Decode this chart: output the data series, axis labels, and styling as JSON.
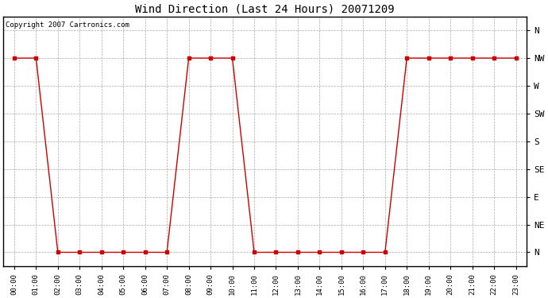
{
  "title": "Wind Direction (Last 24 Hours) 20071209",
  "copyright_text": "Copyright 2007 Cartronics.com",
  "line_color": "#cc0000",
  "marker_color": "#cc0000",
  "background_color": "#ffffff",
  "grid_color": "#aaaaaa",
  "x_labels": [
    "00:00",
    "01:00",
    "02:00",
    "03:00",
    "04:00",
    "05:00",
    "06:00",
    "07:00",
    "08:00",
    "09:00",
    "10:00",
    "11:00",
    "12:00",
    "13:00",
    "14:00",
    "15:00",
    "16:00",
    "17:00",
    "18:00",
    "19:00",
    "20:00",
    "21:00",
    "22:00",
    "23:00"
  ],
  "y_labels_top_to_bottom": [
    "N",
    "NW",
    "W",
    "SW",
    "S",
    "SE",
    "E",
    "NE",
    "N"
  ],
  "y_ticks": [
    8,
    7,
    6,
    5,
    4,
    3,
    2,
    1,
    0
  ],
  "data_x": [
    0,
    1,
    2,
    3,
    4,
    5,
    6,
    7,
    8,
    9,
    10,
    11,
    12,
    13,
    14,
    15,
    16,
    17,
    18,
    19,
    20,
    21,
    22,
    23
  ],
  "data_y": [
    7,
    7,
    0,
    0,
    0,
    0,
    0,
    0,
    7,
    7,
    7,
    0,
    0,
    0,
    0,
    0,
    0,
    0,
    7,
    7,
    7,
    7,
    7,
    7
  ],
  "ylim": [
    -0.5,
    8.5
  ],
  "xlim": [
    -0.5,
    23.5
  ],
  "figwidth": 6.9,
  "figheight": 3.75,
  "dpi": 100
}
